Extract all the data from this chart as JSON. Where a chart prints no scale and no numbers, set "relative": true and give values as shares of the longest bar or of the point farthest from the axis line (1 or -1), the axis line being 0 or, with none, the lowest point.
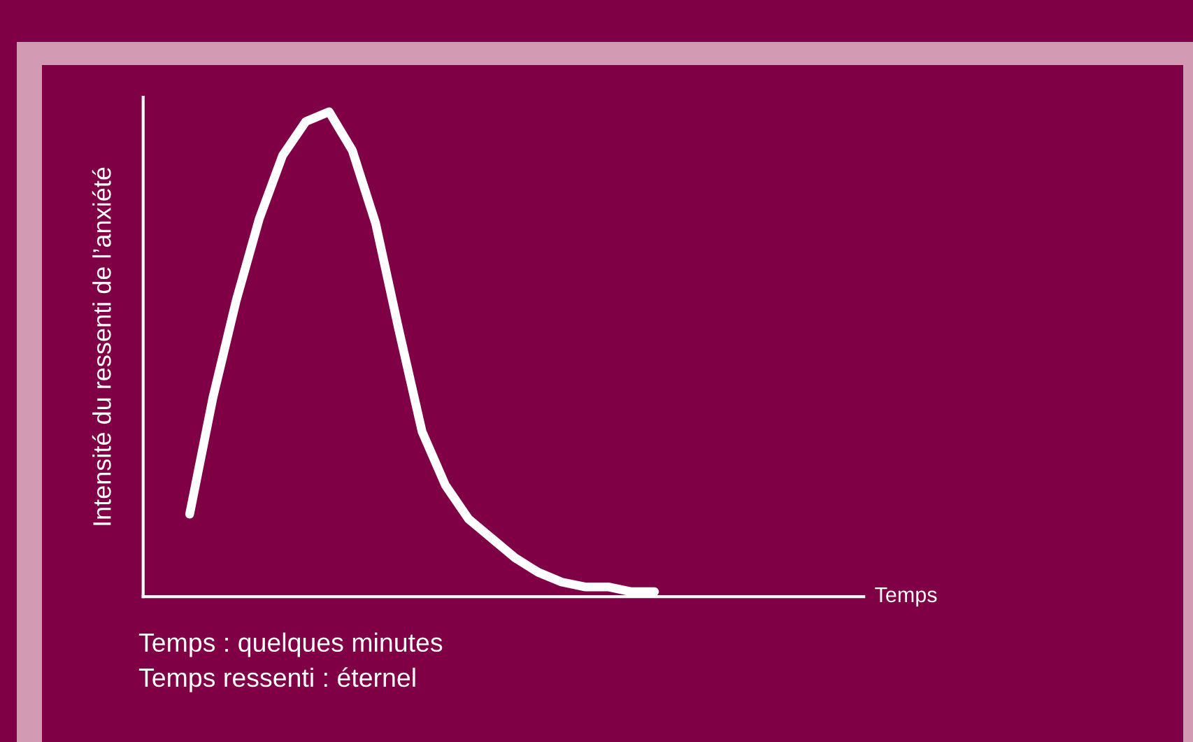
{
  "chart_data": {
    "type": "line",
    "relative": true,
    "ylabel": "Intensité du ressenti de l’anxiété",
    "xlabel": "Temps",
    "categories": [
      null,
      null,
      null,
      null,
      null,
      null,
      null,
      null,
      null,
      null,
      null,
      null,
      null,
      null,
      null,
      null,
      null,
      null,
      null,
      null,
      null,
      null,
      null,
      null,
      null,
      null,
      null,
      null,
      null,
      null,
      null,
      null
    ],
    "series": [
      {
        "color": "#ffffff",
        "values": [
          null,
          null,
          0.17,
          0.41,
          0.61,
          0.78,
          0.91,
          0.98,
          1.0,
          0.92,
          0.77,
          0.55,
          0.34,
          0.23,
          0.16,
          0.12,
          0.08,
          0.05,
          0.03,
          0.02,
          0.02,
          0.01,
          0.01,
          null,
          null,
          null,
          null,
          null,
          null,
          null,
          null,
          null
        ]
      }
    ],
    "annotations": [
      "Temps : quelques minutes",
      "Temps ressenti : éternel"
    ],
    "legend": false,
    "tick_labels": false,
    "line_style": "solid"
  }
}
